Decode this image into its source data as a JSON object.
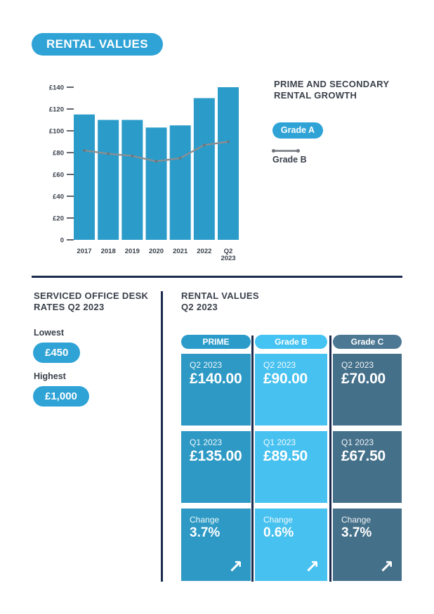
{
  "header": {
    "title": "RENTAL VALUES"
  },
  "colors": {
    "bar_blue": "#2B9CC9",
    "badge_blue": "#2FA3D6",
    "light_blue": "#47C1EF",
    "slate_blue": "#47748D",
    "navy_divider": "#1C2B4D",
    "heading_text": "#3A414B",
    "line_gray": "#8A8E93"
  },
  "chart_data": {
    "type": "bar",
    "title": "PRIME AND SECONDARY RENTAL GROWTH",
    "categories": [
      "2017",
      "2018",
      "2019",
      "2020",
      "2021",
      "2022",
      "Q2 2023"
    ],
    "series": [
      {
        "name": "Grade A",
        "type": "bar",
        "color": "#2B9CC9",
        "values": [
          115,
          110,
          110,
          103,
          105,
          130,
          140
        ]
      },
      {
        "name": "Grade B",
        "type": "line",
        "color": "#8A8E93",
        "values": [
          82,
          79,
          77,
          72,
          75,
          87,
          90
        ]
      }
    ],
    "ylim": [
      0,
      140
    ],
    "yticks": [
      0,
      20,
      40,
      60,
      80,
      100,
      120,
      140
    ],
    "ytick_labels": [
      "0",
      "£20",
      "£40",
      "£60",
      "£80",
      "£100",
      "£120",
      "£140"
    ],
    "grid": false,
    "legend_position": "right"
  },
  "growth_panel": {
    "heading_line1": "PRIME AND SECONDARY",
    "heading_line2": "RENTAL GROWTH",
    "grade_a_label": "Grade A",
    "grade_b_label": "Grade B"
  },
  "desk_rates": {
    "heading_line1": "SERVICED OFFICE DESK",
    "heading_line2": "RATES Q2 2023",
    "lowest_label": "Lowest",
    "lowest_value": "£450",
    "highest_label": "Highest",
    "highest_value": "£1,000"
  },
  "rental_values": {
    "heading_line1": "RENTAL VALUES",
    "heading_line2": "Q2 2023",
    "row_labels": {
      "q2": "Q2 2023",
      "q1": "Q1 2023",
      "change": "Change"
    },
    "columns": [
      {
        "header": "PRIME",
        "pill_color": "#2B9CC9",
        "card_color": "#2D99C4",
        "q2_value": "£140.00",
        "q1_value": "£135.00",
        "change_value": "3.7%"
      },
      {
        "header": "Grade B",
        "pill_color": "#45C3F2",
        "card_color": "#47C1EF",
        "q2_value": "£90.00",
        "q1_value": "£89.50",
        "change_value": "0.6%"
      },
      {
        "header": "Grade C",
        "pill_color": "#4C7893",
        "card_color": "#45708A",
        "q2_value": "£70.00",
        "q1_value": "£67.50",
        "change_value": "3.7%"
      }
    ]
  },
  "icons": {
    "increase_arrow": "↗"
  }
}
